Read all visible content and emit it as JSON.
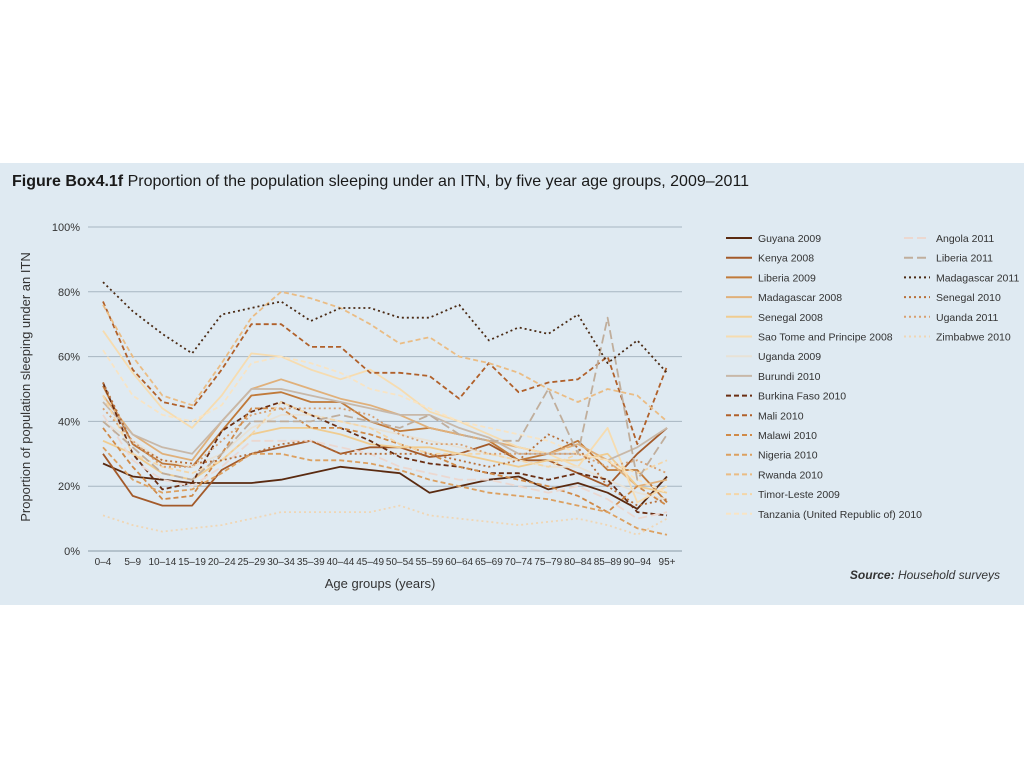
{
  "figure": {
    "label": "Figure Box4.1f",
    "title": "Proportion of the population sleeping under an ITN, by five year age groups, 2009–2011",
    "source_label": "Source:",
    "source_text": "Household surveys"
  },
  "chart_data": {
    "type": "line",
    "xlabel": "Age groups (years)",
    "ylabel": "Proportion of population sleeping under an ITN",
    "ylim": [
      0,
      100
    ],
    "yticks": [
      "0%",
      "20%",
      "40%",
      "60%",
      "80%",
      "100%"
    ],
    "grid": true,
    "legend_position": "right",
    "categories": [
      "0–4",
      "5–9",
      "10–14",
      "15–19",
      "20–24",
      "25–29",
      "30–34",
      "35–39",
      "40–44",
      "45–49",
      "50–54",
      "55–59",
      "60–64",
      "65–69",
      "70–74",
      "75–79",
      "80–84",
      "85–89",
      "90–94",
      "95+"
    ],
    "series": [
      {
        "name": "Guyana 2009",
        "color": "#5a2a10",
        "dash": "solid",
        "values": [
          27,
          23,
          22,
          21,
          21,
          21,
          22,
          24,
          26,
          25,
          24,
          18,
          20,
          22,
          23,
          19,
          21,
          18,
          13,
          23
        ]
      },
      {
        "name": "Kenya 2008",
        "color": "#a35a2a",
        "dash": "solid",
        "values": [
          30,
          17,
          14,
          14,
          25,
          30,
          32,
          34,
          30,
          32,
          32,
          29,
          30,
          33,
          28,
          28,
          24,
          20,
          30,
          38
        ]
      },
      {
        "name": "Liberia 2009",
        "color": "#c07a3a",
        "dash": "solid",
        "values": [
          51,
          33,
          27,
          26,
          37,
          48,
          49,
          46,
          46,
          40,
          37,
          38,
          36,
          34,
          28,
          30,
          34,
          25,
          25,
          15
        ]
      },
      {
        "name": "Madagascar 2008",
        "color": "#e0b07a",
        "dash": "solid",
        "values": [
          48,
          36,
          30,
          28,
          40,
          50,
          53,
          50,
          47,
          45,
          42,
          38,
          36,
          34,
          32,
          30,
          33,
          28,
          20,
          22
        ]
      },
      {
        "name": "Senegal 2008",
        "color": "#f0cc90",
        "dash": "solid",
        "values": [
          34,
          30,
          24,
          22,
          28,
          36,
          38,
          38,
          36,
          33,
          32,
          32,
          30,
          28,
          26,
          28,
          28,
          30,
          20,
          18
        ]
      },
      {
        "name": "Sao Tome and Principe 2008",
        "color": "#f6dcb0",
        "dash": "solid",
        "values": [
          68,
          55,
          44,
          38,
          48,
          61,
          60,
          56,
          53,
          56,
          50,
          43,
          40,
          36,
          32,
          30,
          26,
          38,
          15,
          20
        ]
      },
      {
        "name": "Uganda 2009",
        "color": "#e8e2d6",
        "dash": "solid",
        "values": [
          40,
          34,
          28,
          26,
          30,
          38,
          42,
          42,
          40,
          38,
          36,
          34,
          32,
          30,
          28,
          26,
          26,
          22,
          18,
          16
        ]
      },
      {
        "name": "Burundi 2010",
        "color": "#c8b8a8",
        "dash": "solid",
        "values": [
          46,
          36,
          32,
          30,
          40,
          50,
          50,
          48,
          46,
          44,
          42,
          42,
          38,
          35,
          30,
          30,
          30,
          28,
          32,
          38
        ]
      },
      {
        "name": "Burkina Faso 2010",
        "color": "#6a2e12",
        "dash": "dashed",
        "values": [
          52,
          30,
          19,
          21,
          37,
          43,
          46,
          42,
          38,
          34,
          29,
          27,
          26,
          24,
          24,
          22,
          24,
          22,
          12,
          11
        ]
      },
      {
        "name": "Mali 2010",
        "color": "#b0602a",
        "dash": "dashed",
        "values": [
          77,
          56,
          46,
          44,
          56,
          70,
          70,
          63,
          63,
          55,
          55,
          54,
          47,
          58,
          49,
          52,
          53,
          60,
          33,
          57
        ]
      },
      {
        "name": "Malawi 2010",
        "color": "#d08a48",
        "dash": "dashed",
        "values": [
          38,
          26,
          16,
          17,
          30,
          44,
          44,
          38,
          38,
          36,
          33,
          30,
          26,
          24,
          22,
          20,
          17,
          12,
          20,
          14
        ]
      },
      {
        "name": "Nigeria 2010",
        "color": "#dca060",
        "dash": "dashed",
        "values": [
          32,
          22,
          18,
          19,
          24,
          30,
          30,
          28,
          28,
          27,
          25,
          22,
          20,
          18,
          17,
          16,
          14,
          12,
          7,
          5
        ]
      },
      {
        "name": "Rwanda 2010",
        "color": "#eabc84",
        "dash": "dashed",
        "values": [
          76,
          60,
          48,
          45,
          58,
          72,
          80,
          78,
          75,
          70,
          64,
          66,
          60,
          58,
          55,
          50,
          46,
          50,
          48,
          40
        ]
      },
      {
        "name": "Timor-Leste 2009",
        "color": "#f4d6a8",
        "dash": "dashed",
        "values": [
          48,
          30,
          26,
          24,
          28,
          36,
          46,
          42,
          40,
          38,
          33,
          30,
          30,
          30,
          28,
          26,
          30,
          28,
          24,
          28
        ]
      },
      {
        "name": "Tanzania (United Republic of) 2010",
        "color": "#f8e4c4",
        "dash": "dashed",
        "values": [
          62,
          48,
          42,
          40,
          45,
          58,
          60,
          58,
          55,
          50,
          48,
          44,
          40,
          38,
          36,
          34,
          30,
          28,
          22,
          18
        ]
      },
      {
        "name": "Angola 2011",
        "color": "#ecd8d0",
        "dash": "long-dash",
        "values": [
          42,
          28,
          22,
          20,
          26,
          34,
          34,
          34,
          32,
          30,
          26,
          24,
          22,
          22,
          20,
          18,
          20,
          16,
          10,
          12
        ]
      },
      {
        "name": "Liberia 2011",
        "color": "#c0ae9c",
        "dash": "long-dash",
        "values": [
          40,
          32,
          24,
          22,
          30,
          40,
          40,
          40,
          42,
          40,
          38,
          42,
          36,
          34,
          34,
          50,
          30,
          72,
          22,
          36
        ]
      },
      {
        "name": "Madagascar 2011",
        "color": "#4a2a14",
        "dash": "dotted",
        "values": [
          83,
          74,
          67,
          61,
          73,
          75,
          77,
          71,
          75,
          75,
          72,
          72,
          76,
          65,
          69,
          67,
          73,
          58,
          65,
          55
        ]
      },
      {
        "name": "Senegal 2010",
        "color": "#b8703a",
        "dash": "dotted",
        "values": [
          52,
          33,
          28,
          27,
          28,
          30,
          33,
          34,
          30,
          30,
          30,
          30,
          28,
          26,
          28,
          36,
          32,
          20,
          14,
          16
        ]
      },
      {
        "name": "Uganda 2011",
        "color": "#d8a070",
        "dash": "dotted",
        "values": [
          44,
          34,
          26,
          26,
          34,
          42,
          44,
          44,
          44,
          42,
          36,
          33,
          33,
          30,
          30,
          30,
          30,
          26,
          28,
          24
        ]
      },
      {
        "name": "Zimbabwe 2010",
        "color": "#f0d6b4",
        "dash": "dotted",
        "values": [
          11,
          8,
          6,
          7,
          8,
          10,
          12,
          12,
          12,
          12,
          14,
          11,
          10,
          9,
          8,
          9,
          10,
          8,
          5,
          10
        ]
      }
    ]
  }
}
